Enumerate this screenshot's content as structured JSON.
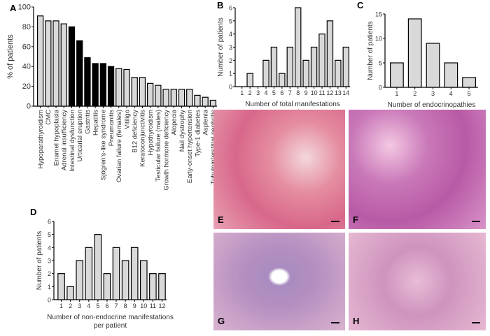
{
  "panels": {
    "A": "A",
    "B": "B",
    "C": "C",
    "D": "D",
    "E": "E",
    "F": "F",
    "G": "G",
    "H": "H"
  },
  "colors": {
    "bar_light": "#d9d9d9",
    "bar_dark": "#000000"
  },
  "chart_data": [
    {
      "id": "A",
      "type": "bar",
      "ylabel": "% of patients",
      "xlabel": "",
      "ylim": [
        0,
        100
      ],
      "yticks": [
        0,
        20,
        40,
        60,
        80,
        100
      ],
      "categories": [
        "Hypoparathyroidism",
        "CMC",
        "Enamel hypoplasia",
        "Adrenal insufficiency",
        "Intestinal dysfunction",
        "Urticarial eruption",
        "Gastritis",
        "Hepatitis",
        "Sjögren's-like syndrome",
        "Pneumonitis",
        "Ovarian failure (females)",
        "Vitiligo",
        "B12 deficiency",
        "Keratoconjunctivitis",
        "Hypothyroidism",
        "Testicular failure (males)",
        "Growth hormone deficiency",
        "Alopecia",
        "Nail dystrophy",
        "Early-onset hypertension",
        "Type-1 diabetes",
        "Asplenia",
        "Tubulointerstitial nephritis"
      ],
      "values": [
        91,
        86,
        86,
        83,
        80,
        66,
        49,
        43,
        43,
        40,
        38,
        37,
        29,
        29,
        23,
        21,
        17,
        17,
        17,
        17,
        11,
        9,
        6
      ],
      "highlighted": [
        false,
        false,
        false,
        false,
        true,
        true,
        true,
        true,
        true,
        true,
        false,
        false,
        false,
        false,
        false,
        false,
        false,
        false,
        false,
        false,
        false,
        false,
        false
      ]
    },
    {
      "id": "B",
      "type": "bar",
      "ylabel": "Number of patients",
      "xlabel": "Number of total manifestations per patient",
      "ylim": [
        0,
        6
      ],
      "yticks": [
        0,
        1,
        2,
        3,
        4,
        5,
        6
      ],
      "categories": [
        "1",
        "2",
        "3",
        "4",
        "5",
        "6",
        "7",
        "8",
        "9",
        "10",
        "11",
        "12",
        "13",
        "14"
      ],
      "values": [
        0,
        1,
        0,
        2,
        3,
        1,
        3,
        6,
        2,
        3,
        4,
        5,
        2,
        3
      ]
    },
    {
      "id": "C",
      "type": "bar",
      "ylabel": "Number of patients",
      "xlabel": "Number of endocrinopathies per patient",
      "ylim": [
        0,
        15
      ],
      "yticks": [
        0,
        5,
        10,
        15
      ],
      "categories": [
        "1",
        "2",
        "3",
        "4",
        "5"
      ],
      "values": [
        5,
        14,
        9,
        5,
        2
      ]
    },
    {
      "id": "D",
      "type": "bar",
      "ylabel": "Number of patients",
      "xlabel": "Number of non-endocrine manifestations per patient",
      "ylim": [
        0,
        6
      ],
      "yticks": [
        0,
        1,
        2,
        3,
        4,
        5,
        6
      ],
      "categories": [
        "1",
        "2",
        "3",
        "4",
        "5",
        "6",
        "7",
        "8",
        "9",
        "10",
        "11",
        "12"
      ],
      "values": [
        2,
        1,
        3,
        4,
        5,
        2,
        4,
        3,
        4,
        3,
        2,
        2
      ]
    }
  ]
}
